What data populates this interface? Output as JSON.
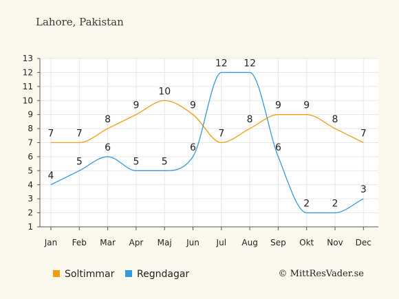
{
  "chart_data": {
    "type": "line",
    "title": "Lahore, Pakistan",
    "categories": [
      "Jan",
      "Feb",
      "Mar",
      "Apr",
      "Maj",
      "Jun",
      "Jul",
      "Aug",
      "Sep",
      "Okt",
      "Nov",
      "Dec"
    ],
    "ylim": [
      1,
      13
    ],
    "yticks": [
      "1",
      "2",
      "3",
      "4",
      "5",
      "6",
      "7",
      "8",
      "9",
      "10",
      "11",
      "12",
      "13"
    ],
    "grid": true,
    "legend_position": "bottom-left",
    "series": [
      {
        "name": "Soltimmar",
        "color": "#f39c12",
        "values": [
          7,
          7,
          8,
          9,
          10,
          9,
          7,
          8,
          9,
          9,
          8,
          7
        ]
      },
      {
        "name": "Regndagar",
        "color": "#3498db",
        "values": [
          4,
          5,
          6,
          5,
          5,
          6,
          12,
          12,
          6,
          2,
          2,
          3
        ]
      }
    ],
    "credit": "© MittResVader.se"
  }
}
